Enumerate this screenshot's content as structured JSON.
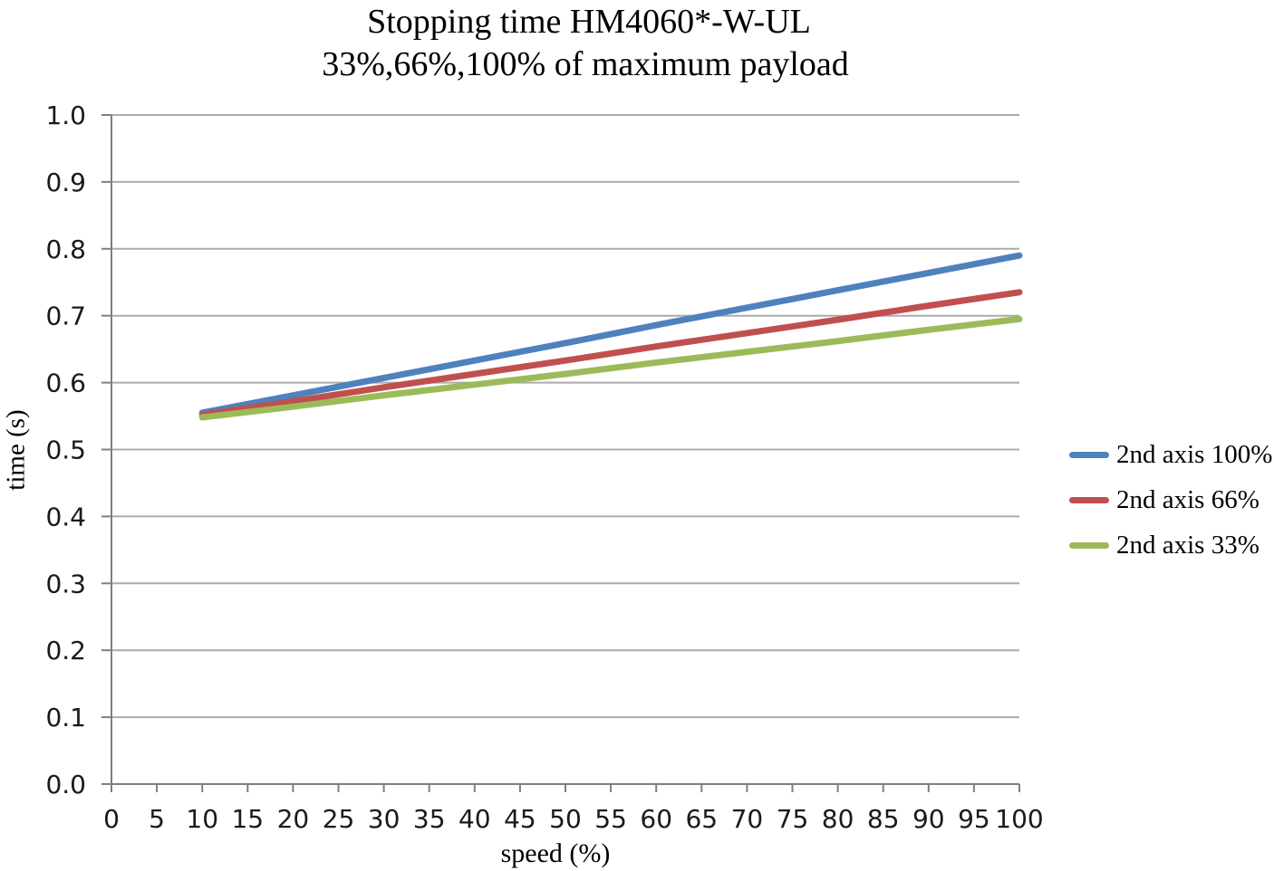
{
  "chart_data": {
    "type": "line",
    "title": "Stopping time HM4060*-W-UL",
    "subtitle": "33%,66%,100% of maximum payload",
    "xlabel": "speed (%)",
    "ylabel": "time (s)",
    "xlim": [
      0,
      100
    ],
    "ylim": [
      0.0,
      1.0
    ],
    "x_ticks": [
      0,
      5,
      10,
      15,
      20,
      25,
      30,
      35,
      40,
      45,
      50,
      55,
      60,
      65,
      70,
      75,
      80,
      85,
      90,
      95,
      100
    ],
    "y_ticks": [
      0.0,
      0.1,
      0.2,
      0.3,
      0.4,
      0.5,
      0.6,
      0.7,
      0.8,
      0.9,
      1.0
    ],
    "y_tick_labels": [
      "0.0",
      "0.1",
      "0.2",
      "0.3",
      "0.4",
      "0.5",
      "0.6",
      "0.7",
      "0.8",
      "0.9",
      "1.0"
    ],
    "grid": "horizontal",
    "legend_position": "right",
    "x": [
      10,
      20,
      30,
      40,
      50,
      60,
      70,
      80,
      90,
      100
    ],
    "series": [
      {
        "name": "2nd axis 100%",
        "color": "#4F81BD",
        "values": [
          0.555,
          0.581,
          0.607,
          0.633,
          0.659,
          0.686,
          0.712,
          0.738,
          0.764,
          0.79
        ]
      },
      {
        "name": "2nd axis 66%",
        "color": "#C0504D",
        "values": [
          0.552,
          0.572,
          0.593,
          0.613,
          0.633,
          0.654,
          0.674,
          0.694,
          0.715,
          0.735
        ]
      },
      {
        "name": "2nd axis 33%",
        "color": "#9BBB59",
        "values": [
          0.548,
          0.564,
          0.581,
          0.597,
          0.613,
          0.63,
          0.646,
          0.662,
          0.679,
          0.695
        ]
      }
    ]
  },
  "colors": {
    "gridline": "#ABABAB",
    "axis": "#7F7F7F",
    "tick_text": "#1a1a1a",
    "title_text": "#000000"
  }
}
